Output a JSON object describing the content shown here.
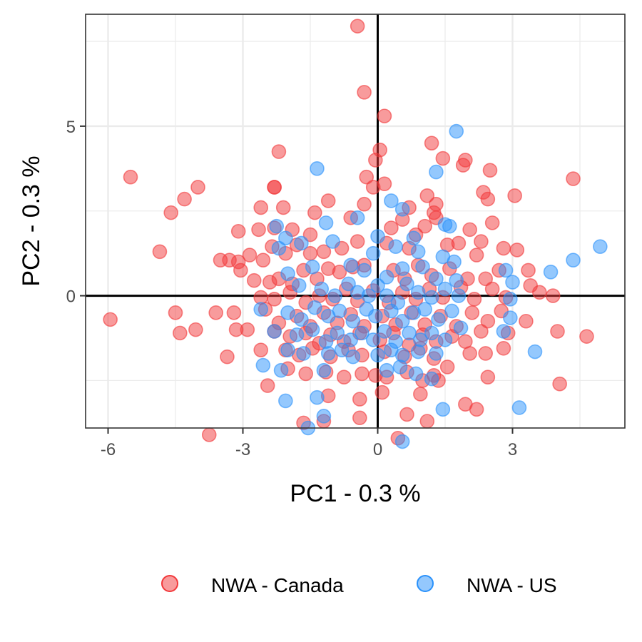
{
  "chart_data": {
    "type": "scatter",
    "xlabel": "PC1 - 0.3 %",
    "ylabel": "PC2 - 0.3 %",
    "xlim": [
      -6.5,
      5.5
    ],
    "ylim": [
      -3.9,
      8.3
    ],
    "x_ticks": [
      -6,
      -3,
      0,
      3
    ],
    "y_ticks": [
      0,
      5
    ],
    "x_tick_labels": [
      "-6",
      "-3",
      "0",
      "3"
    ],
    "y_tick_labels": [
      "0",
      "5"
    ],
    "grid": true,
    "reference_lines": {
      "x": 0,
      "y": 0
    },
    "legend_position": "bottom",
    "series": [
      {
        "name": "NWA - Canada",
        "color": "#F2383A",
        "points": [
          [
            -0.45,
            7.95
          ],
          [
            -0.3,
            6.0
          ],
          [
            0.15,
            5.3
          ],
          [
            -2.2,
            4.25
          ],
          [
            -0.05,
            4.0
          ],
          [
            0.05,
            4.3
          ],
          [
            1.2,
            4.5
          ],
          [
            1.45,
            4.05
          ],
          [
            1.9,
            3.85
          ],
          [
            1.95,
            4.0
          ],
          [
            -5.5,
            3.5
          ],
          [
            -4.3,
            2.85
          ],
          [
            -4.0,
            3.2
          ],
          [
            -2.3,
            3.2
          ],
          [
            -2.3,
            3.2
          ],
          [
            -0.25,
            3.5
          ],
          [
            -0.1,
            3.2
          ],
          [
            0.15,
            3.3
          ],
          [
            2.35,
            3.05
          ],
          [
            2.45,
            2.85
          ],
          [
            2.5,
            3.7
          ],
          [
            3.05,
            2.95
          ],
          [
            4.35,
            3.45
          ],
          [
            -4.6,
            2.45
          ],
          [
            -4.85,
            1.3
          ],
          [
            -5.95,
            -0.7
          ],
          [
            -2.6,
            2.6
          ],
          [
            -2.1,
            2.6
          ],
          [
            -1.4,
            2.45
          ],
          [
            -1.1,
            2.8
          ],
          [
            -0.3,
            2.7
          ],
          [
            0.7,
            2.6
          ],
          [
            1.1,
            2.95
          ],
          [
            1.25,
            2.45
          ],
          [
            1.3,
            2.7
          ],
          [
            2.55,
            2.15
          ],
          [
            2.05,
            1.95
          ],
          [
            1.8,
            1.55
          ],
          [
            2.3,
            1.6
          ],
          [
            2.2,
            1.2
          ],
          [
            2.8,
            1.4
          ],
          [
            3.1,
            1.35
          ],
          [
            3.35,
            0.75
          ],
          [
            -3.1,
            1.9
          ],
          [
            -2.65,
            1.95
          ],
          [
            -2.3,
            2.0
          ],
          [
            -1.9,
            1.95
          ],
          [
            -1.5,
            1.8
          ],
          [
            -0.6,
            2.3
          ],
          [
            0.3,
            2.0
          ],
          [
            0.55,
            2.25
          ],
          [
            0.85,
            1.8
          ],
          [
            1.05,
            2.05
          ],
          [
            1.3,
            2.3
          ],
          [
            -3.5,
            1.05
          ],
          [
            -3.3,
            1.05
          ],
          [
            -3.1,
            1.0
          ],
          [
            -3.05,
            0.75
          ],
          [
            -2.85,
            1.2
          ],
          [
            -2.55,
            1.05
          ],
          [
            -2.35,
            1.45
          ],
          [
            -2.05,
            1.25
          ],
          [
            -1.8,
            1.5
          ],
          [
            -1.5,
            1.25
          ],
          [
            -1.2,
            1.3
          ],
          [
            -0.8,
            1.4
          ],
          [
            -0.45,
            1.6
          ],
          [
            0.2,
            1.55
          ],
          [
            0.7,
            1.4
          ],
          [
            1.55,
            1.5
          ],
          [
            -2.75,
            0.45
          ],
          [
            -2.4,
            0.4
          ],
          [
            -2.2,
            0.5
          ],
          [
            -1.9,
            0.35
          ],
          [
            -1.65,
            0.75
          ],
          [
            -1.35,
            0.5
          ],
          [
            -1.1,
            0.8
          ],
          [
            -0.85,
            0.7
          ],
          [
            -0.55,
            0.85
          ],
          [
            -0.3,
            0.9
          ],
          [
            0.35,
            0.75
          ],
          [
            0.6,
            0.5
          ],
          [
            0.9,
            0.9
          ],
          [
            1.2,
            0.6
          ],
          [
            1.6,
            0.8
          ],
          [
            2.0,
            0.5
          ],
          [
            2.4,
            0.5
          ],
          [
            2.7,
            0.75
          ],
          [
            -2.6,
            -0.05
          ],
          [
            -2.3,
            -0.1
          ],
          [
            -1.95,
            0.1
          ],
          [
            -1.6,
            -0.2
          ],
          [
            -1.3,
            0.0
          ],
          [
            -1.0,
            -0.1
          ],
          [
            -0.7,
            0.2
          ],
          [
            -0.45,
            -0.15
          ],
          [
            -0.1,
            0.15
          ],
          [
            0.25,
            -0.2
          ],
          [
            0.55,
            0.1
          ],
          [
            0.85,
            -0.1
          ],
          [
            1.15,
            0.2
          ],
          [
            1.45,
            -0.05
          ],
          [
            1.85,
            0.25
          ],
          [
            2.15,
            -0.1
          ],
          [
            2.55,
            0.2
          ],
          [
            2.85,
            -0.05
          ],
          [
            3.4,
            0.3
          ],
          [
            3.6,
            0.1
          ],
          [
            3.9,
            0.0
          ],
          [
            -4.5,
            -0.5
          ],
          [
            -3.6,
            -0.5
          ],
          [
            -3.2,
            -0.5
          ],
          [
            -2.5,
            -0.4
          ],
          [
            -2.2,
            -0.8
          ],
          [
            -1.8,
            -0.6
          ],
          [
            -1.5,
            -0.9
          ],
          [
            -1.2,
            -0.5
          ],
          [
            -0.9,
            -0.8
          ],
          [
            -0.6,
            -0.55
          ],
          [
            -0.3,
            -0.9
          ],
          [
            0.1,
            -0.6
          ],
          [
            0.4,
            -0.85
          ],
          [
            0.75,
            -0.5
          ],
          [
            1.05,
            -0.85
          ],
          [
            1.4,
            -0.6
          ],
          [
            1.75,
            -0.9
          ],
          [
            2.1,
            -0.5
          ],
          [
            2.45,
            -0.75
          ],
          [
            2.75,
            -0.45
          ],
          [
            3.3,
            -0.75
          ],
          [
            -4.4,
            -1.1
          ],
          [
            -4.05,
            -1.0
          ],
          [
            -3.15,
            -1.0
          ],
          [
            -2.9,
            -1.0
          ],
          [
            -2.3,
            -1.05
          ],
          [
            -1.95,
            -1.2
          ],
          [
            -1.6,
            -1.1
          ],
          [
            -1.3,
            -1.4
          ],
          [
            -1.05,
            -1.15
          ],
          [
            -0.75,
            -1.35
          ],
          [
            -0.4,
            -1.1
          ],
          [
            0.05,
            -1.3
          ],
          [
            0.35,
            -1.1
          ],
          [
            0.7,
            -1.45
          ],
          [
            1.0,
            -1.15
          ],
          [
            1.3,
            -1.35
          ],
          [
            1.65,
            -1.2
          ],
          [
            1.95,
            -1.35
          ],
          [
            2.3,
            -1.05
          ],
          [
            2.9,
            -1.1
          ],
          [
            4.0,
            -1.05
          ],
          [
            4.65,
            -1.2
          ],
          [
            -3.35,
            -1.8
          ],
          [
            -2.6,
            -1.6
          ],
          [
            -2.05,
            -1.6
          ],
          [
            -1.75,
            -1.75
          ],
          [
            -1.45,
            -1.55
          ],
          [
            -1.05,
            -1.8
          ],
          [
            -0.65,
            -1.6
          ],
          [
            -0.35,
            -1.75
          ],
          [
            0.15,
            -1.65
          ],
          [
            0.6,
            -1.8
          ],
          [
            0.95,
            -1.55
          ],
          [
            1.25,
            -1.85
          ],
          [
            2.05,
            -1.7
          ],
          [
            2.4,
            -1.7
          ],
          [
            2.8,
            -1.55
          ],
          [
            -2.45,
            -2.65
          ],
          [
            -2.0,
            -2.15
          ],
          [
            -1.6,
            -2.3
          ],
          [
            -1.15,
            -2.25
          ],
          [
            -0.75,
            -2.4
          ],
          [
            -0.35,
            -2.3
          ],
          [
            -0.05,
            -2.35
          ],
          [
            0.2,
            -2.4
          ],
          [
            0.65,
            -2.25
          ],
          [
            1.0,
            -2.5
          ],
          [
            1.25,
            -2.35
          ],
          [
            1.55,
            -2.1
          ],
          [
            1.35,
            -2.5
          ],
          [
            2.45,
            -2.4
          ],
          [
            4.05,
            -2.6
          ],
          [
            -1.1,
            -2.95
          ],
          [
            -0.4,
            -3.05
          ],
          [
            0.1,
            -2.85
          ],
          [
            0.95,
            -2.9
          ],
          [
            1.95,
            -3.2
          ],
          [
            2.2,
            -3.35
          ],
          [
            -3.75,
            -4.1
          ],
          [
            -1.65,
            -3.75
          ],
          [
            -1.2,
            -3.7
          ],
          [
            -0.4,
            -3.6
          ],
          [
            0.65,
            -3.5
          ],
          [
            1.1,
            -3.7
          ],
          [
            0.45,
            -4.2
          ]
        ]
      },
      {
        "name": "NWA - US",
        "color": "#2991FB",
        "points": [
          [
            1.75,
            4.85
          ],
          [
            -1.35,
            3.75
          ],
          [
            1.3,
            3.65
          ],
          [
            0.3,
            2.8
          ],
          [
            0.55,
            2.55
          ],
          [
            -0.45,
            2.3
          ],
          [
            -1.15,
            2.15
          ],
          [
            0.8,
            1.7
          ],
          [
            1.5,
            2.1
          ],
          [
            1.6,
            2.05
          ],
          [
            -2.25,
            2.05
          ],
          [
            -2.05,
            1.7
          ],
          [
            -1.7,
            1.55
          ],
          [
            -1.0,
            1.6
          ],
          [
            0.0,
            1.75
          ],
          [
            0.4,
            1.45
          ],
          [
            0.9,
            1.3
          ],
          [
            1.45,
            1.15
          ],
          [
            1.7,
            1.0
          ],
          [
            -0.1,
            1.25
          ],
          [
            -2.2,
            1.4
          ],
          [
            4.95,
            1.45
          ],
          [
            4.35,
            1.05
          ],
          [
            3.85,
            0.7
          ],
          [
            3.0,
            0.4
          ],
          [
            2.85,
            0.75
          ],
          [
            -2.0,
            0.65
          ],
          [
            -1.45,
            0.85
          ],
          [
            -0.6,
            0.9
          ],
          [
            -0.3,
            0.75
          ],
          [
            0.2,
            0.55
          ],
          [
            0.55,
            0.8
          ],
          [
            1.0,
            0.85
          ],
          [
            1.3,
            0.5
          ],
          [
            1.75,
            0.45
          ],
          [
            -1.75,
            0.3
          ],
          [
            -1.25,
            0.2
          ],
          [
            -0.95,
            0.0
          ],
          [
            -0.65,
            0.35
          ],
          [
            -0.45,
            0.1
          ],
          [
            -0.2,
            0.0
          ],
          [
            0.0,
            0.3
          ],
          [
            0.2,
            0.0
          ],
          [
            0.45,
            -0.2
          ],
          [
            0.65,
            0.35
          ],
          [
            0.9,
            0.1
          ],
          [
            1.2,
            -0.05
          ],
          [
            1.5,
            0.2
          ],
          [
            1.8,
            0.0
          ],
          [
            -2.6,
            -0.4
          ],
          [
            -2.0,
            -0.5
          ],
          [
            -1.7,
            -0.7
          ],
          [
            -1.4,
            -0.35
          ],
          [
            -1.1,
            -0.6
          ],
          [
            -0.85,
            -0.45
          ],
          [
            -0.55,
            -0.75
          ],
          [
            -0.25,
            -0.4
          ],
          [
            -0.05,
            -0.6
          ],
          [
            0.3,
            -0.45
          ],
          [
            0.55,
            -0.75
          ],
          [
            0.8,
            -0.5
          ],
          [
            1.05,
            -0.4
          ],
          [
            1.35,
            -0.7
          ],
          [
            1.65,
            -0.45
          ],
          [
            2.95,
            -0.1
          ],
          [
            2.95,
            -0.65
          ],
          [
            -2.3,
            -1.05
          ],
          [
            -1.8,
            -1.15
          ],
          [
            -1.45,
            -1.0
          ],
          [
            -1.15,
            -1.35
          ],
          [
            -0.9,
            -1.1
          ],
          [
            -0.6,
            -1.3
          ],
          [
            -0.35,
            -1.1
          ],
          [
            -0.1,
            -1.3
          ],
          [
            0.15,
            -1.05
          ],
          [
            0.4,
            -1.35
          ],
          [
            0.7,
            -1.1
          ],
          [
            0.95,
            -1.3
          ],
          [
            1.2,
            -1.1
          ],
          [
            1.5,
            -1.3
          ],
          [
            1.85,
            -0.95
          ],
          [
            2.8,
            -1.05
          ],
          [
            -2.0,
            -1.6
          ],
          [
            -1.65,
            -1.7
          ],
          [
            -1.1,
            -1.7
          ],
          [
            -0.8,
            -1.6
          ],
          [
            -0.55,
            -1.8
          ],
          [
            0.0,
            -1.75
          ],
          [
            0.3,
            -1.6
          ],
          [
            0.55,
            -1.75
          ],
          [
            0.9,
            -1.65
          ],
          [
            1.3,
            -1.7
          ],
          [
            3.5,
            -1.65
          ],
          [
            -2.55,
            -2.05
          ],
          [
            -2.15,
            -2.2
          ],
          [
            -1.2,
            -2.2
          ],
          [
            0.2,
            -2.2
          ],
          [
            0.5,
            -2.1
          ],
          [
            0.85,
            -2.3
          ],
          [
            1.2,
            -2.45
          ],
          [
            -2.05,
            -3.1
          ],
          [
            -1.35,
            -3.0
          ],
          [
            -1.2,
            -3.55
          ],
          [
            1.45,
            -3.35
          ],
          [
            3.15,
            -3.3
          ],
          [
            -1.55,
            -3.9
          ],
          [
            0.55,
            -4.3
          ]
        ]
      }
    ]
  }
}
